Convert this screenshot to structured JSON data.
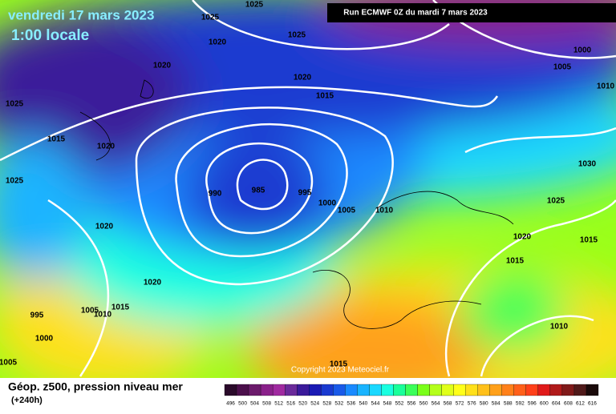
{
  "header": {
    "date": "vendredi 17 mars 2023",
    "time": "1:00 locale",
    "run": "Run ECMWF 0Z du mardi 7 mars 2023"
  },
  "copyright": "Copyright 2023 Meteociel.fr",
  "footer": {
    "title": "Géop. z500, pression niveau mer",
    "lead": "(+240h)"
  },
  "isobar_labels": [
    "1025",
    "1025",
    "1025",
    "1020",
    "1020",
    "1020",
    "1015",
    "1025",
    "1015",
    "1020",
    "1025",
    "990",
    "985",
    "995",
    "1000",
    "1005",
    "1010",
    "1020",
    "1020",
    "1005",
    "1010",
    "1015",
    "995",
    "1000",
    "1005",
    "1015",
    "1000",
    "1005",
    "1010",
    "1030",
    "1025",
    "1020",
    "1015",
    "1015",
    "1010"
  ],
  "legend": {
    "labels": [
      "496",
      "500",
      "504",
      "508",
      "512",
      "516",
      "520",
      "524",
      "528",
      "532",
      "536",
      "540",
      "544",
      "548",
      "552",
      "556",
      "560",
      "564",
      "568",
      "572",
      "576",
      "580",
      "584",
      "588",
      "592",
      "596",
      "600",
      "604",
      "608",
      "612",
      "616"
    ],
    "colors": [
      "#2a0a2a",
      "#4b0f4b",
      "#6b1a6b",
      "#8a208a",
      "#a02aa0",
      "#6a2a9a",
      "#3a1a9a",
      "#1a1ab4",
      "#1a3ad0",
      "#1a5ae8",
      "#1a8aff",
      "#1ab4ff",
      "#1ad8ff",
      "#1affe0",
      "#1aff9a",
      "#3aff5a",
      "#7aff1a",
      "#b4ff1a",
      "#e0ff1a",
      "#ffff1a",
      "#ffe01a",
      "#ffc01a",
      "#ffa01a",
      "#ff801a",
      "#ff601a",
      "#ff401a",
      "#e01a1a",
      "#b01a1a",
      "#801a1a",
      "#501a1a",
      "#1a0a0a"
    ]
  }
}
